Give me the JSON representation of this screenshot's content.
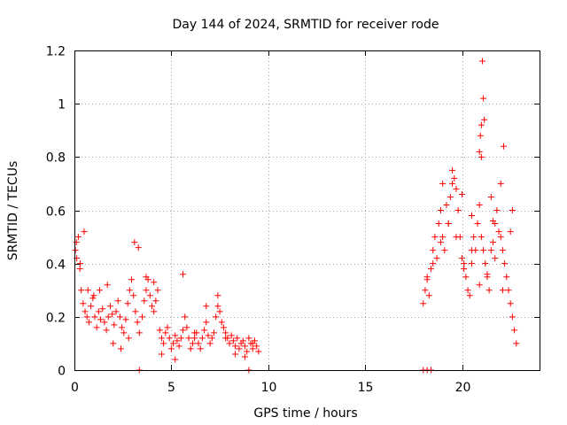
{
  "chart_data": {
    "type": "scatter",
    "title": "Day 144 of 2024, SRMTID for receiver rode",
    "xlabel": "GPS time / hours",
    "ylabel": "SRMTID / TECUs",
    "xlim": [
      0,
      24
    ],
    "ylim": [
      0,
      1.2
    ],
    "xticks": [
      0,
      5,
      10,
      15,
      20
    ],
    "xtick_labels": [
      "0",
      "5",
      "10",
      "15",
      "20"
    ],
    "yticks": [
      0,
      0.2,
      0.4,
      0.6,
      0.8,
      1.0,
      1.2
    ],
    "ytick_labels": [
      "0",
      "0.2",
      "0.4",
      "0.6",
      "0.8",
      "1",
      "1.2"
    ],
    "grid": true,
    "marker": "+",
    "color": "#ff0000",
    "series": [
      {
        "name": "SRMTID",
        "x": [
          0.05,
          0.12,
          0.2,
          0.28,
          0.35,
          0.45,
          0.55,
          0.65,
          0.75,
          0.85,
          0.95,
          1.05,
          1.15,
          1.25,
          1.35,
          1.45,
          1.55,
          1.65,
          1.75,
          1.85,
          1.95,
          2.05,
          2.15,
          2.25,
          2.35,
          2.45,
          2.55,
          2.65,
          2.75,
          2.85,
          2.95,
          3.05,
          3.15,
          3.25,
          3.35,
          3.5,
          3.6,
          3.7,
          3.8,
          3.9,
          4.0,
          4.1,
          4.2,
          4.3,
          4.4,
          4.5,
          4.6,
          4.7,
          4.8,
          4.9,
          5.0,
          5.1,
          5.2,
          5.3,
          5.4,
          5.5,
          5.6,
          5.7,
          5.8,
          5.9,
          6.0,
          6.1,
          6.2,
          6.3,
          6.4,
          6.5,
          6.6,
          6.7,
          6.8,
          6.9,
          7.0,
          7.1,
          7.2,
          7.3,
          7.4,
          7.5,
          7.6,
          7.7,
          7.8,
          7.9,
          8.0,
          8.1,
          8.2,
          8.3,
          8.4,
          8.5,
          8.6,
          8.7,
          8.8,
          8.9,
          9.0,
          9.1,
          9.2,
          9.3,
          9.4,
          9.5,
          0.1,
          0.3,
          0.5,
          0.7,
          1.0,
          1.3,
          1.7,
          2.0,
          2.4,
          2.8,
          3.1,
          3.3,
          3.7,
          4.1,
          4.5,
          5.2,
          5.6,
          6.2,
          6.8,
          7.4,
          7.8,
          8.3,
          8.8,
          9.2,
          3.35,
          9.0,
          18.0,
          18.2,
          18.4,
          18.0,
          18.1,
          18.2,
          18.3,
          18.4,
          18.5,
          18.6,
          18.7,
          18.8,
          18.9,
          19.0,
          19.1,
          19.2,
          19.3,
          19.4,
          19.5,
          19.6,
          19.7,
          19.8,
          19.9,
          20.0,
          20.1,
          20.2,
          20.3,
          20.4,
          20.5,
          20.6,
          20.7,
          20.8,
          20.9,
          21.0,
          21.1,
          21.2,
          21.3,
          21.4,
          21.5,
          21.6,
          21.7,
          21.8,
          21.9,
          22.0,
          22.1,
          22.2,
          22.3,
          22.4,
          22.5,
          22.6,
          22.7,
          22.8,
          18.2,
          18.5,
          18.9,
          19.3,
          19.7,
          20.1,
          20.5,
          20.9,
          21.3,
          21.7,
          22.1,
          22.5,
          19.0,
          19.5,
          20.0,
          20.5,
          21.0,
          21.5,
          22.0,
          22.6,
          21.05,
          21.1,
          21.15,
          21.0,
          20.95,
          20.9,
          22.15,
          21.6
        ],
        "y": [
          0.45,
          0.42,
          0.5,
          0.38,
          0.3,
          0.25,
          0.22,
          0.2,
          0.18,
          0.24,
          0.27,
          0.2,
          0.16,
          0.22,
          0.19,
          0.23,
          0.18,
          0.15,
          0.2,
          0.24,
          0.21,
          0.17,
          0.22,
          0.26,
          0.2,
          0.16,
          0.14,
          0.19,
          0.25,
          0.3,
          0.34,
          0.28,
          0.22,
          0.18,
          0.14,
          0.2,
          0.26,
          0.3,
          0.34,
          0.28,
          0.24,
          0.22,
          0.26,
          0.3,
          0.15,
          0.12,
          0.1,
          0.14,
          0.16,
          0.12,
          0.08,
          0.1,
          0.13,
          0.11,
          0.09,
          0.12,
          0.15,
          0.2,
          0.16,
          0.12,
          0.08,
          0.1,
          0.12,
          0.14,
          0.1,
          0.08,
          0.12,
          0.15,
          0.18,
          0.13,
          0.1,
          0.12,
          0.14,
          0.2,
          0.24,
          0.22,
          0.18,
          0.16,
          0.14,
          0.12,
          0.1,
          0.13,
          0.11,
          0.09,
          0.12,
          0.08,
          0.1,
          0.11,
          0.09,
          0.07,
          0.12,
          0.1,
          0.08,
          0.11,
          0.09,
          0.07,
          0.48,
          0.4,
          0.52,
          0.3,
          0.28,
          0.3,
          0.32,
          0.1,
          0.08,
          0.12,
          0.48,
          0.46,
          0.35,
          0.33,
          0.06,
          0.04,
          0.36,
          0.14,
          0.24,
          0.28,
          0.12,
          0.06,
          0.05,
          0.1,
          0.0,
          0.0,
          0.0,
          0.0,
          0.0,
          0.25,
          0.3,
          0.34,
          0.28,
          0.38,
          0.45,
          0.5,
          0.42,
          0.55,
          0.6,
          0.5,
          0.45,
          0.62,
          0.55,
          0.65,
          0.7,
          0.72,
          0.68,
          0.6,
          0.5,
          0.42,
          0.38,
          0.35,
          0.3,
          0.28,
          0.4,
          0.5,
          0.45,
          0.55,
          0.62,
          0.5,
          0.45,
          0.4,
          0.35,
          0.3,
          0.45,
          0.48,
          0.55,
          0.6,
          0.52,
          0.5,
          0.45,
          0.4,
          0.35,
          0.3,
          0.25,
          0.2,
          0.15,
          0.1,
          0.35,
          0.4,
          0.48,
          0.55,
          0.5,
          0.4,
          0.45,
          0.32,
          0.36,
          0.42,
          0.3,
          0.52,
          0.7,
          0.75,
          0.66,
          0.58,
          0.8,
          0.65,
          0.7,
          0.6,
          1.16,
          1.02,
          0.94,
          0.92,
          0.88,
          0.82,
          0.84,
          0.56
        ]
      }
    ]
  }
}
